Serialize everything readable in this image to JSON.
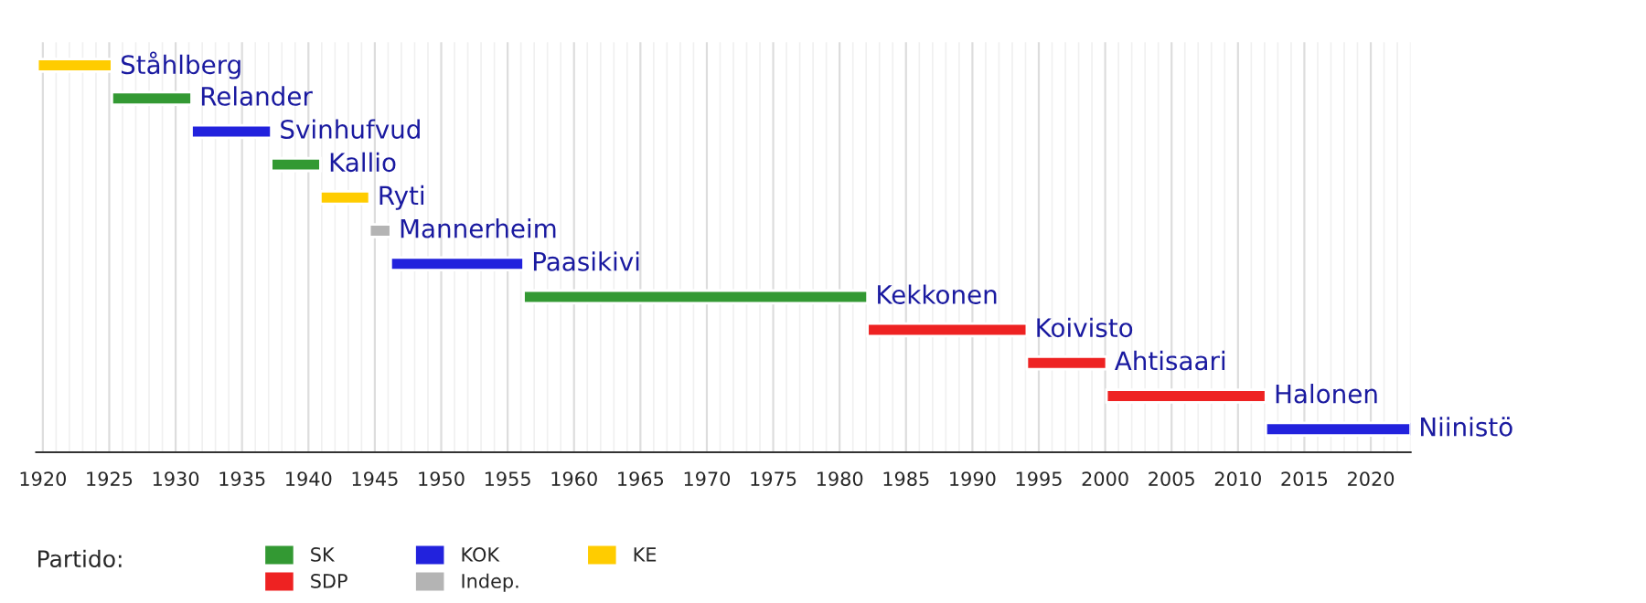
{
  "chart_data": {
    "type": "bar",
    "orientation": "horizontal",
    "legend_title": "Partido:",
    "legend": "bottom",
    "grid": "x",
    "tick_labels": "x",
    "categories": [
      "Ståhlberg",
      "Relander",
      "Svinhufvud",
      "Kallio",
      "Ryti",
      "Mannerheim",
      "Paasikivi",
      "Kekkonen",
      "Koivisto",
      "Ahtisaari",
      "Halonen",
      "Niinistö"
    ],
    "series": [
      {
        "name": "SK",
        "color": "#339933",
        "values": [
          null,
          6.0,
          null,
          3.7,
          null,
          null,
          null,
          25.9,
          null,
          null,
          null,
          null
        ],
        "base": [
          null,
          1925.2,
          null,
          1937.2,
          null,
          null,
          null,
          1956.2,
          null,
          null,
          null,
          null
        ]
      },
      {
        "name": "SDP",
        "color": "#ee2222",
        "values": [
          null,
          null,
          null,
          null,
          null,
          null,
          null,
          null,
          12.0,
          6.0,
          12.0,
          null
        ],
        "base": [
          null,
          null,
          null,
          null,
          null,
          null,
          null,
          null,
          1982.1,
          1994.1,
          2000.1,
          null
        ]
      },
      {
        "name": "KOK",
        "color": "#2222dd",
        "values": [
          null,
          null,
          6.0,
          null,
          null,
          null,
          10.0,
          null,
          null,
          null,
          null,
          10.9
        ],
        "base": [
          null,
          null,
          1931.2,
          null,
          null,
          null,
          1946.2,
          null,
          null,
          null,
          null,
          2012.1
        ]
      },
      {
        "name": "Indep.",
        "color": "#b4b4b4",
        "values": [
          null,
          null,
          null,
          null,
          null,
          1.6,
          null,
          null,
          null,
          null,
          null,
          null
        ],
        "base": [
          null,
          null,
          null,
          null,
          null,
          1944.6,
          null,
          null,
          null,
          null,
          null,
          null
        ]
      },
      {
        "name": "KE",
        "color": "#ffcc00",
        "values": [
          5.6,
          null,
          null,
          null,
          3.7,
          null,
          null,
          null,
          null,
          null,
          null,
          null
        ],
        "base": [
          1919.6,
          null,
          null,
          null,
          1940.9,
          null,
          null,
          null,
          null,
          null,
          null,
          null
        ]
      }
    ],
    "xlim": [
      1919.5,
      2023
    ],
    "xticks": [
      1920,
      1925,
      1930,
      1935,
      1940,
      1945,
      1950,
      1955,
      1960,
      1965,
      1970,
      1975,
      1980,
      1985,
      1990,
      1995,
      2000,
      2005,
      2010,
      2015,
      2020
    ]
  }
}
